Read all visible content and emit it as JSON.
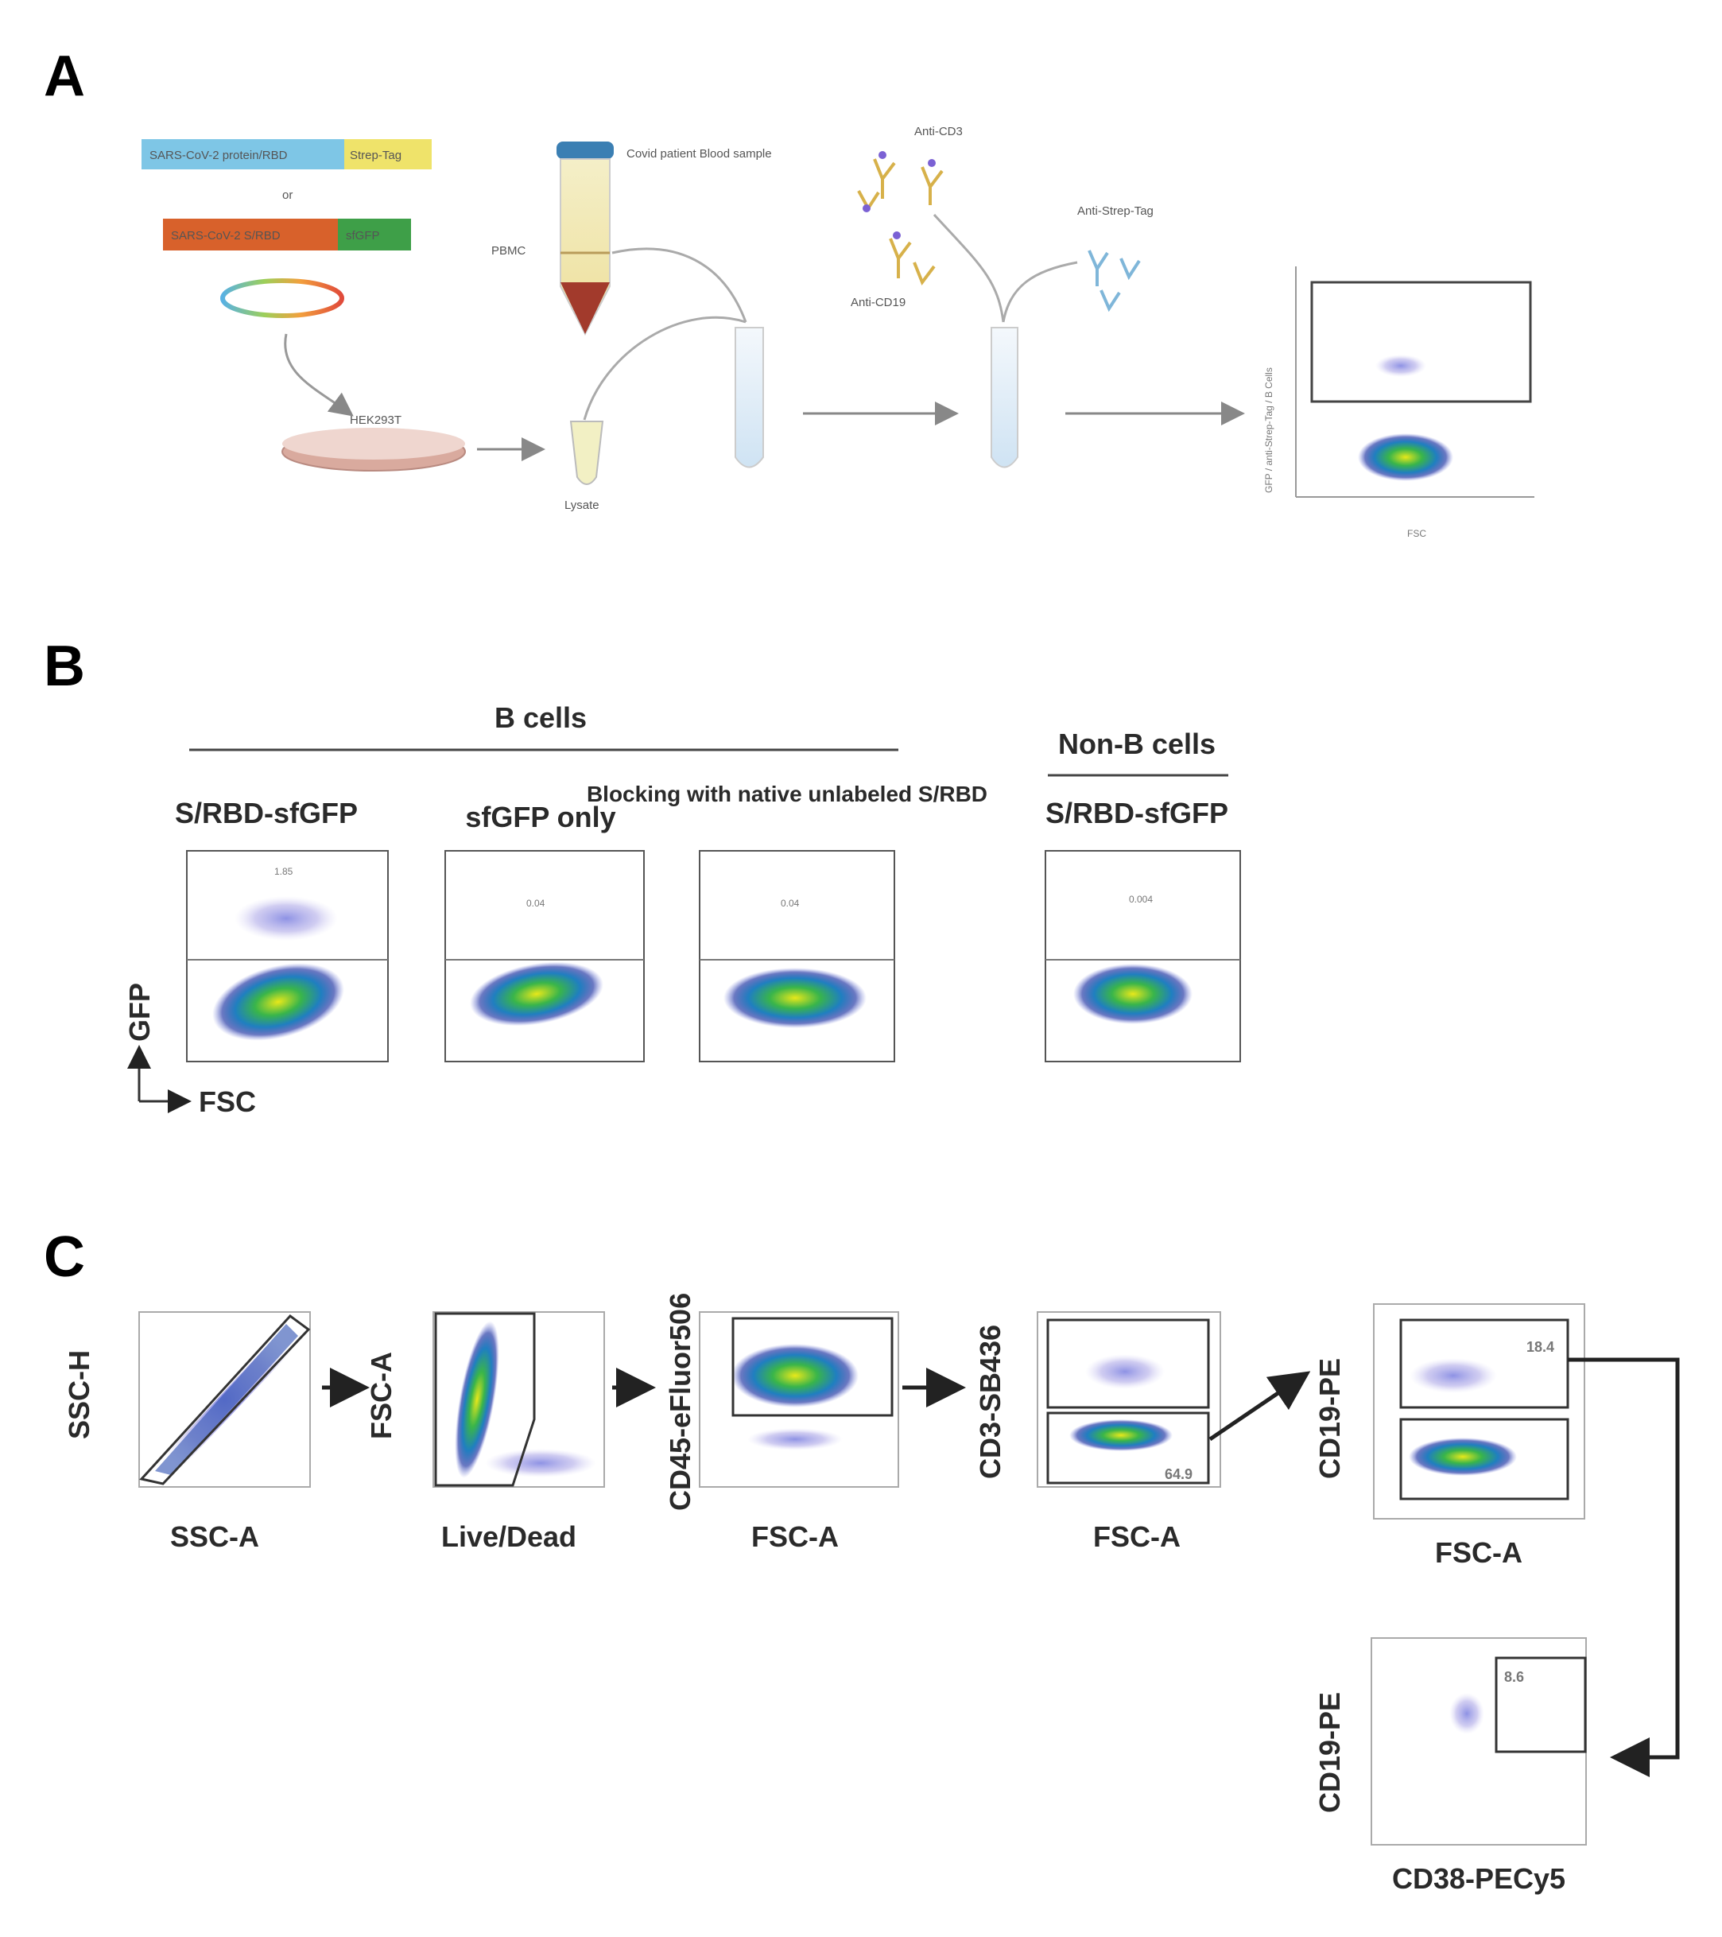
{
  "panels": {
    "a": "A",
    "b": "B",
    "c": "C"
  },
  "panel_a": {
    "construct_top": "SARS-CoV-2 protein/RBD",
    "construct_top_tag": "Strep-Tag",
    "construct_or": "or",
    "construct_bottom": "SARS-CoV-2 S/RBD",
    "construct_bottom_tag": "sfGFP",
    "cells": "HEK293T",
    "lysate": "Lysate",
    "blood_sample": "Covid patient Blood sample",
    "pbmc": "PBMC",
    "anti_cd3": "Anti-CD3",
    "anti_cd19": "Anti-CD19",
    "anti_strep": "Anti-Strep-Tag",
    "plot_y": "GFP / anti-Strep-Tag / B Cells",
    "plot_x": "FSC"
  },
  "panel_b": {
    "group_b": "B cells",
    "group_nonb": "Non-B cells",
    "titles": [
      "S/RBD-sfGFP",
      "sfGFP only",
      "Blocking with native unlabeled S/RBD",
      "S/RBD-sfGFP"
    ],
    "gate_values": [
      "1.85",
      "0.04",
      "0.04",
      "0.004"
    ],
    "axis_y": "GFP",
    "axis_x": "FSC"
  },
  "panel_c": {
    "plots": [
      {
        "x": "SSC-A",
        "y": "SSC-H"
      },
      {
        "x": "Live/Dead",
        "y": "FSC-A"
      },
      {
        "x": "FSC-A",
        "y": "CD45-eFluor506"
      },
      {
        "x": "FSC-A",
        "y": "CD3-SB436",
        "value": "64.9"
      },
      {
        "x": "FSC-A",
        "y": "CD19-PE",
        "value": "18.4"
      },
      {
        "x": "CD38-PECy5",
        "y": "CD19-PE",
        "value": "8.6"
      }
    ]
  },
  "colors": {
    "gate": "#404040",
    "density_hi": "#39b54a",
    "density_mid": "#1f7fc0",
    "density_lo": "#a9a3e6"
  }
}
